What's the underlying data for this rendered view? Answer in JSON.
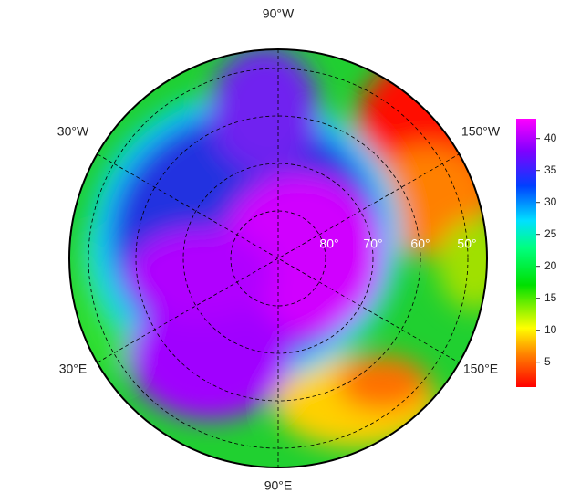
{
  "map": {
    "longitude_labels": [
      "90°W",
      "30°W",
      "150°W",
      "30°E",
      "150°E",
      "90°E"
    ],
    "latitude_labels": [
      "80°",
      "70°",
      "60°",
      "50°"
    ],
    "colorbar": {
      "ylim": [
        1.1,
        43.1
      ],
      "yticks": [
        5,
        10,
        15,
        20,
        25,
        30,
        35,
        40
      ]
    }
  }
}
